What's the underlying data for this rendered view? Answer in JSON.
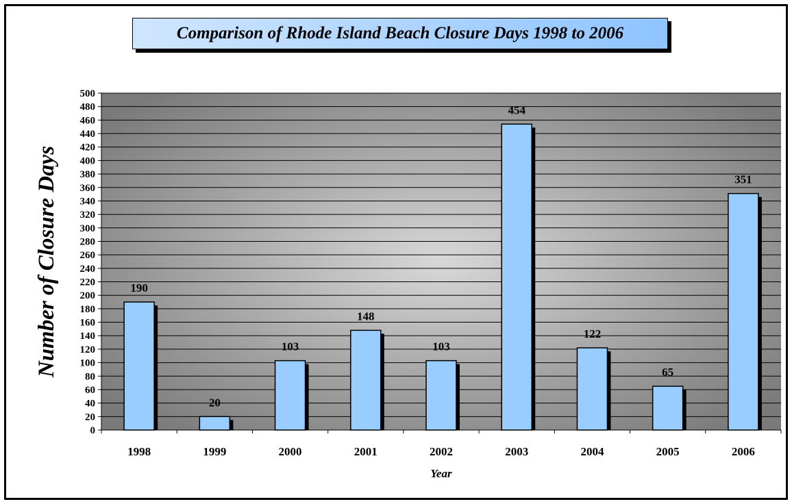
{
  "chart_data": {
    "type": "bar",
    "title": "Comparison of Rhode Island Beach Closure Days 1998 to 2006",
    "xlabel": "Year",
    "ylabel": "Number of Closure Days",
    "categories": [
      "1998",
      "1999",
      "2000",
      "2001",
      "2002",
      "2003",
      "2004",
      "2005",
      "2006"
    ],
    "values": [
      190,
      20,
      103,
      148,
      103,
      454,
      122,
      65,
      351
    ],
    "data_labels": [
      "190",
      "20",
      "103",
      "148",
      "103",
      "454",
      "122",
      "65",
      "351"
    ],
    "ylim": [
      0,
      500
    ],
    "ytick_step": 20,
    "grid": true,
    "legend": "none",
    "colors": {
      "bar": "#99ccff",
      "bar_shadow": "#000000",
      "plot_center": "#d8d8d8",
      "plot_edge": "#7a7a7a",
      "gridline": "#000000"
    }
  }
}
